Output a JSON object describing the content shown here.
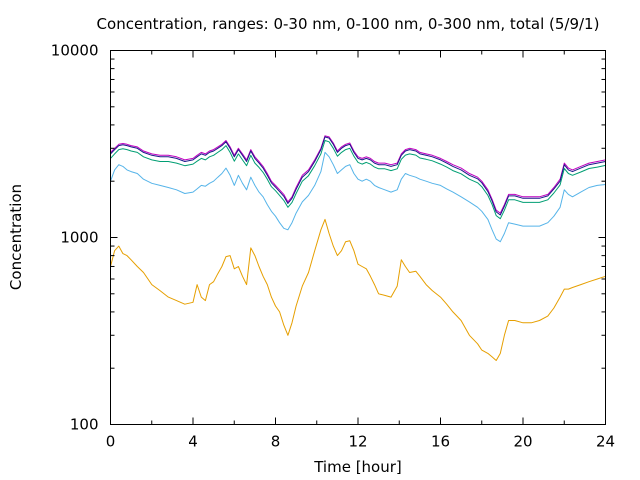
{
  "chart_data": {
    "type": "line",
    "title": "Concentration, ranges: 0-30 nm, 0-100 nm, 0-300 nm, total (5/9/1)",
    "xlabel": "Time [hour]",
    "ylabel": "Concentration",
    "xlim": [
      0,
      24
    ],
    "ylim": [
      100,
      10000
    ],
    "yscale": "log",
    "x_ticks": [
      "0",
      "4",
      "8",
      "12",
      "16",
      "20",
      "24"
    ],
    "y_ticks": [
      "100",
      "1000",
      "10000"
    ],
    "grid": false,
    "legend": "none",
    "x": [
      0,
      0.2,
      0.4,
      0.6,
      0.8,
      1,
      1.3,
      1.6,
      2,
      2.4,
      2.8,
      3.2,
      3.6,
      4,
      4.2,
      4.4,
      4.6,
      4.8,
      5,
      5.2,
      5.4,
      5.6,
      5.8,
      6,
      6.2,
      6.4,
      6.6,
      6.8,
      7,
      7.2,
      7.4,
      7.6,
      7.8,
      8,
      8.2,
      8.4,
      8.6,
      8.8,
      9,
      9.3,
      9.6,
      9.9,
      10.2,
      10.4,
      10.6,
      10.8,
      11,
      11.2,
      11.4,
      11.6,
      11.8,
      12,
      12.2,
      12.4,
      12.6,
      12.8,
      13,
      13.3,
      13.6,
      13.9,
      14.1,
      14.3,
      14.5,
      14.8,
      15,
      15.3,
      15.6,
      16,
      16.3,
      16.6,
      17,
      17.4,
      17.8,
      18,
      18.3,
      18.5,
      18.7,
      18.9,
      19.1,
      19.3,
      19.6,
      20,
      20.4,
      20.8,
      21.2,
      21.5,
      21.8,
      22,
      22.2,
      22.4,
      22.8,
      23.2,
      23.6,
      24
    ],
    "series": [
      {
        "color": "#c000c0",
        "values": [
          2850,
          3000,
          3150,
          3180,
          3150,
          3100,
          3050,
          2900,
          2800,
          2750,
          2750,
          2700,
          2600,
          2650,
          2750,
          2850,
          2800,
          2900,
          2950,
          3050,
          3150,
          3300,
          3050,
          2750,
          3000,
          2800,
          2600,
          2950,
          2700,
          2550,
          2400,
          2200,
          2000,
          1900,
          1800,
          1700,
          1550,
          1650,
          1850,
          2150,
          2300,
          2600,
          3000,
          3500,
          3450,
          3200,
          2900,
          3050,
          3150,
          3200,
          2900,
          2700,
          2650,
          2700,
          2650,
          2550,
          2500,
          2500,
          2450,
          2500,
          2800,
          2950,
          3000,
          2950,
          2850,
          2800,
          2750,
          2650,
          2550,
          2450,
          2350,
          2200,
          2100,
          2000,
          1800,
          1600,
          1400,
          1350,
          1500,
          1700,
          1700,
          1650,
          1650,
          1650,
          1700,
          1850,
          2050,
          2500,
          2350,
          2300,
          2400,
          2500,
          2550,
          2600
        ]
      },
      {
        "color": "#1a1a8a",
        "values": [
          2800,
          2950,
          3100,
          3130,
          3100,
          3050,
          3000,
          2850,
          2750,
          2700,
          2700,
          2650,
          2550,
          2600,
          2700,
          2800,
          2750,
          2850,
          2900,
          3000,
          3100,
          3250,
          3000,
          2700,
          2950,
          2750,
          2550,
          2900,
          2650,
          2500,
          2350,
          2150,
          1960,
          1860,
          1760,
          1660,
          1520,
          1620,
          1810,
          2100,
          2250,
          2550,
          2950,
          3450,
          3400,
          3150,
          2850,
          3000,
          3100,
          3150,
          2850,
          2650,
          2600,
          2650,
          2600,
          2500,
          2450,
          2450,
          2400,
          2450,
          2750,
          2900,
          2950,
          2900,
          2800,
          2750,
          2700,
          2600,
          2500,
          2400,
          2300,
          2150,
          2060,
          1960,
          1760,
          1570,
          1370,
          1320,
          1470,
          1670,
          1670,
          1620,
          1620,
          1620,
          1670,
          1820,
          2000,
          2450,
          2300,
          2250,
          2350,
          2450,
          2500,
          2550
        ]
      },
      {
        "color": "#009e73",
        "values": [
          2650,
          2800,
          2950,
          2980,
          2950,
          2900,
          2850,
          2700,
          2600,
          2550,
          2550,
          2500,
          2420,
          2470,
          2560,
          2650,
          2600,
          2700,
          2750,
          2850,
          2950,
          3100,
          2850,
          2560,
          2800,
          2600,
          2420,
          2750,
          2500,
          2370,
          2230,
          2050,
          1870,
          1780,
          1680,
          1580,
          1450,
          1540,
          1720,
          2000,
          2140,
          2420,
          2800,
          3300,
          3250,
          3000,
          2720,
          2850,
          2950,
          3000,
          2720,
          2520,
          2470,
          2520,
          2470,
          2380,
          2330,
          2330,
          2280,
          2330,
          2620,
          2760,
          2800,
          2760,
          2660,
          2620,
          2570,
          2470,
          2380,
          2280,
          2190,
          2050,
          1960,
          1870,
          1680,
          1500,
          1310,
          1260,
          1400,
          1590,
          1590,
          1540,
          1540,
          1540,
          1590,
          1730,
          1910,
          2340,
          2200,
          2150,
          2240,
          2340,
          2380,
          2430
        ]
      },
      {
        "color": "#56b4e9",
        "values": [
          2000,
          2300,
          2450,
          2400,
          2300,
          2250,
          2200,
          2050,
          1950,
          1900,
          1850,
          1800,
          1720,
          1750,
          1820,
          1900,
          1880,
          1950,
          2000,
          2100,
          2200,
          2350,
          2150,
          1900,
          2150,
          1950,
          1800,
          2100,
          1900,
          1750,
          1650,
          1500,
          1380,
          1300,
          1200,
          1120,
          1100,
          1200,
          1350,
          1550,
          1680,
          1900,
          2250,
          2850,
          2700,
          2450,
          2200,
          2300,
          2400,
          2450,
          2200,
          2050,
          2000,
          2050,
          2000,
          1900,
          1850,
          1800,
          1750,
          1800,
          2050,
          2200,
          2150,
          2100,
          2050,
          2000,
          1950,
          1900,
          1820,
          1750,
          1650,
          1550,
          1450,
          1380,
          1250,
          1100,
          980,
          950,
          1050,
          1200,
          1180,
          1150,
          1150,
          1150,
          1200,
          1300,
          1450,
          1800,
          1700,
          1650,
          1750,
          1850,
          1900,
          1920
        ]
      },
      {
        "color": "#e69f00",
        "values": [
          700,
          850,
          900,
          820,
          800,
          760,
          700,
          650,
          560,
          520,
          480,
          460,
          440,
          450,
          560,
          480,
          460,
          560,
          580,
          640,
          700,
          790,
          800,
          680,
          700,
          620,
          560,
          880,
          800,
          700,
          620,
          560,
          480,
          430,
          400,
          340,
          300,
          350,
          430,
          550,
          650,
          850,
          1100,
          1250,
          1050,
          900,
          800,
          850,
          950,
          960,
          850,
          720,
          700,
          680,
          620,
          560,
          500,
          490,
          480,
          550,
          760,
          700,
          650,
          660,
          620,
          560,
          520,
          480,
          440,
          400,
          360,
          300,
          270,
          250,
          240,
          230,
          220,
          240,
          300,
          360,
          360,
          350,
          350,
          360,
          380,
          420,
          480,
          530,
          530,
          540,
          560,
          580,
          600,
          620
        ]
      }
    ]
  }
}
